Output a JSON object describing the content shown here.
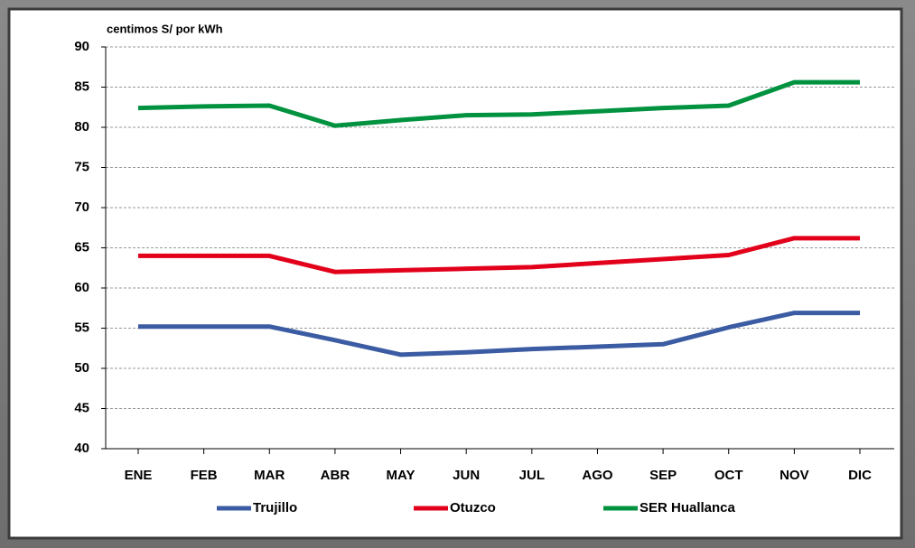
{
  "chart_data": {
    "type": "line",
    "y_label": "centimos S/ por kWh",
    "categories": [
      "ENE",
      "FEB",
      "MAR",
      "ABR",
      "MAY",
      "JUN",
      "JUL",
      "AGO",
      "SEP",
      "OCT",
      "NOV",
      "DIC"
    ],
    "series": [
      {
        "name": "Trujillo",
        "color": "#3b5ca3",
        "values": [
          55.2,
          55.2,
          55.2,
          53.5,
          51.7,
          52.0,
          52.4,
          52.7,
          53.0,
          55.1,
          56.9,
          56.9
        ]
      },
      {
        "name": "Otuzco",
        "color": "#e2001a",
        "values": [
          64.0,
          64.0,
          64.0,
          62.0,
          62.2,
          62.4,
          62.6,
          63.1,
          63.6,
          64.1,
          66.2,
          66.2
        ]
      },
      {
        "name": "SER Huallanca",
        "color": "#00923f",
        "values": [
          82.4,
          82.6,
          82.7,
          80.2,
          80.9,
          81.5,
          81.6,
          82.0,
          82.4,
          82.7,
          85.6,
          85.6
        ]
      }
    ],
    "ylim": [
      40,
      90
    ],
    "yticks": [
      40,
      45,
      50,
      55,
      60,
      65,
      70,
      75,
      80,
      85,
      90
    ],
    "grid": true,
    "legend": "bottom"
  }
}
